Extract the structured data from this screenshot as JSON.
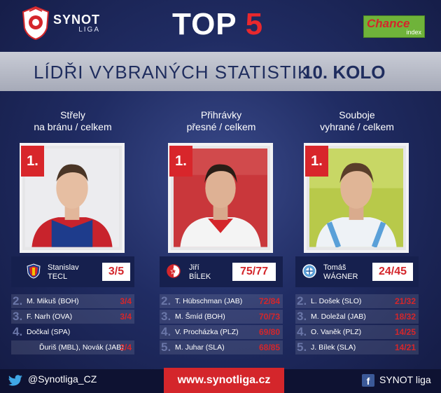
{
  "header": {
    "logo_name": "SYNOT",
    "logo_sub": "LIGA",
    "top_label": "TOP",
    "top_number": "5",
    "sponsor_main": "Chance",
    "sponsor_sub": "index"
  },
  "band": {
    "title": "LÍDŘI VYBRANÝCH STATISTIK",
    "round": "10. KOLO"
  },
  "columns": [
    {
      "title_line1": "Střely",
      "title_line2": "na bránu / celkem",
      "rank": "1.",
      "player_first": "Stanislav",
      "player_last": "TECL",
      "score": "3/5",
      "rows": [
        {
          "rank": "2.",
          "name": "M. Mikuš (BOH)",
          "value": "3/4"
        },
        {
          "rank": "3.",
          "name": "F. Narh (OVA)",
          "value": "3/4"
        },
        {
          "rank": "4.",
          "name": "Dočkal (SPA)",
          "value": ""
        },
        {
          "rank": "",
          "name": "Ďuriš (MBL), Novák (JAB)",
          "value": "2/4"
        }
      ]
    },
    {
      "title_line1": "Přihrávky",
      "title_line2": "přesné / celkem",
      "rank": "1.",
      "player_first": "Jiří",
      "player_last": "BÍLEK",
      "score": "75/77",
      "rows": [
        {
          "rank": "2.",
          "name": "T. Hübschman (JAB)",
          "value": "72/84"
        },
        {
          "rank": "3.",
          "name": "M. Šmíd (BOH)",
          "value": "70/73"
        },
        {
          "rank": "4.",
          "name": "V. Procházka (PLZ)",
          "value": "69/80"
        },
        {
          "rank": "5.",
          "name": "M. Juhar (SLA)",
          "value": "68/85"
        }
      ]
    },
    {
      "title_line1": "Souboje",
      "title_line2": "vyhrané / celkem",
      "rank": "1.",
      "player_first": "Tomáš",
      "player_last": "WÁGNER",
      "score": "24/45",
      "rows": [
        {
          "rank": "2.",
          "name": "L. Došek (SLO)",
          "value": "21/32"
        },
        {
          "rank": "3.",
          "name": "M. Doležal (JAB)",
          "value": "18/32"
        },
        {
          "rank": "4.",
          "name": "O. Vaněk (PLZ)",
          "value": "14/25"
        },
        {
          "rank": "5.",
          "name": "J. Bílek (SLA)",
          "value": "14/21"
        }
      ]
    }
  ],
  "footer": {
    "twitter": "@Synotliga_CZ",
    "website": "www.synotliga.cz",
    "facebook_icon": "f",
    "facebook": "SYNOT liga"
  },
  "colors": {
    "accent_red": "#d4262b",
    "navy": "#202c63",
    "sponsor_green": "#6fb33a"
  }
}
